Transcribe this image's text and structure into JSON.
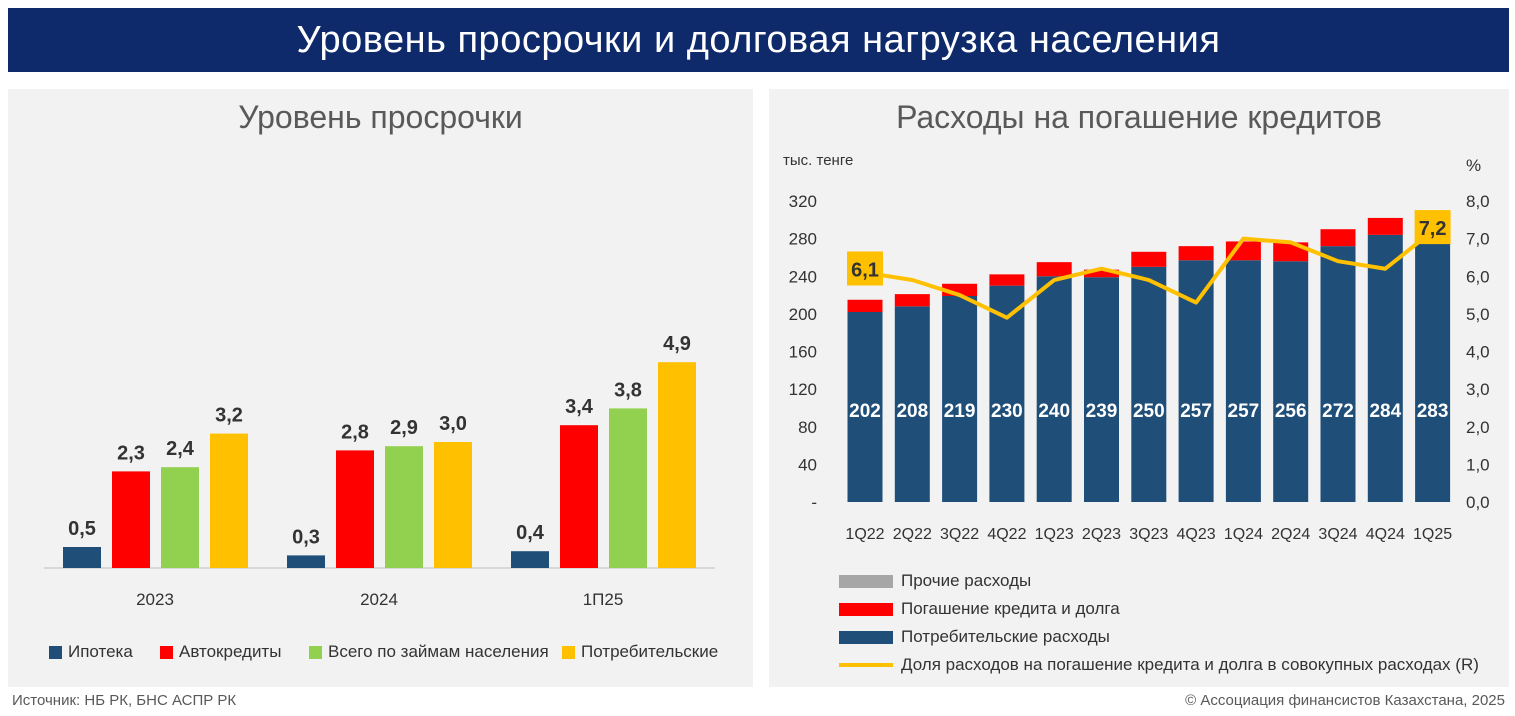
{
  "banner_title": "Уровень просрочки и долговая нагрузка населения",
  "footer": {
    "source": "Источник: НБ РК, БНС АСПР РК",
    "copyright": "© Ассоциация финансистов Казахстана, 2025"
  },
  "colors": {
    "banner": "#0e2a6b",
    "mortgage": "#1f4e79",
    "auto": "#ff0000",
    "total": "#92d050",
    "consumer": "#ffc000",
    "consumption": "#1f4e79",
    "repayment": "#ff0000",
    "other": "#a6a6a6",
    "share_line": "#ffc000"
  },
  "left_chart": {
    "title": "Уровень просрочки",
    "chart_data": {
      "type": "bar",
      "title": "Уровень просрочки",
      "categories": [
        "2023",
        "2024",
        "1П25"
      ],
      "series": [
        {
          "name": "Ипотека",
          "values": [
            0.5,
            0.3,
            0.4
          ],
          "labels": [
            "0,5",
            "0,3",
            "0,4"
          ]
        },
        {
          "name": "Автокредиты",
          "values": [
            2.3,
            2.8,
            3.4
          ],
          "labels": [
            "2,3",
            "2,8",
            "3,4"
          ]
        },
        {
          "name": "Всего по займам населения",
          "values": [
            2.4,
            2.9,
            3.8
          ],
          "labels": [
            "2,4",
            "2,9",
            "3,8"
          ]
        },
        {
          "name": "Потребительские",
          "values": [
            3.2,
            3.0,
            4.9
          ],
          "labels": [
            "3,2",
            "3,0",
            "4,9"
          ]
        }
      ],
      "legend_position": "bottom",
      "grid": false
    }
  },
  "right_chart": {
    "title": "Расходы на погашение кредитов",
    "y_left_unit": "тыс. тенге",
    "y_right_unit": "%",
    "chart_data": {
      "type": "bar",
      "title": "Расходы на погашение кредитов",
      "categories": [
        "1Q22",
        "2Q22",
        "3Q22",
        "4Q22",
        "1Q23",
        "2Q23",
        "3Q23",
        "4Q23",
        "1Q24",
        "2Q24",
        "3Q24",
        "4Q24",
        "1Q25"
      ],
      "y_left_ticks": [
        "-",
        "40",
        "80",
        "120",
        "160",
        "200",
        "240",
        "280",
        "320"
      ],
      "y_right_ticks": [
        "0,0",
        "1,0",
        "2,0",
        "3,0",
        "4,0",
        "5,0",
        "6,0",
        "7,0",
        "8,0"
      ],
      "ylim_left": [
        0,
        320
      ],
      "ylim_right": [
        0,
        8
      ],
      "series": [
        {
          "name": "Прочие расходы",
          "kind": "stacked-bar",
          "values": [
            0,
            0,
            0,
            0,
            0,
            0,
            0,
            0,
            0,
            0,
            0,
            0,
            0
          ]
        },
        {
          "name": "Погашение кредита и долга",
          "kind": "stacked-bar",
          "values": [
            13,
            13,
            13,
            12,
            15,
            8,
            16,
            15,
            20,
            20,
            18,
            18,
            13
          ]
        },
        {
          "name": "Потребительские расходы",
          "kind": "stacked-bar",
          "values": [
            202,
            208,
            219,
            230,
            240,
            239,
            250,
            257,
            257,
            256,
            272,
            284,
            283
          ]
        },
        {
          "name": "Доля расходов на погашение кредита и долга в совокупных расходах (R)",
          "kind": "line",
          "axis": "right",
          "values": [
            6.1,
            5.9,
            5.5,
            4.9,
            5.9,
            6.2,
            5.9,
            5.3,
            7.0,
            6.9,
            6.4,
            6.2,
            7.2
          ]
        }
      ],
      "highlight_labels": [
        {
          "index": 0,
          "text": "6,1"
        },
        {
          "index": 12,
          "text": "7,2"
        }
      ],
      "legend_position": "bottom",
      "grid": false
    }
  }
}
